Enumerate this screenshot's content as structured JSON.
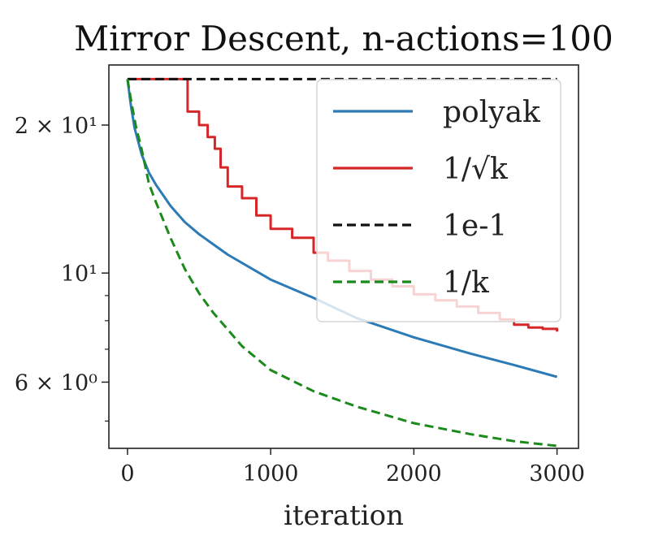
{
  "chart_data": {
    "type": "line",
    "title": "Mirror Descent, n-actions=100",
    "xlabel": "iteration",
    "ylabel": "",
    "xlim": [
      -130,
      3150
    ],
    "ylim": [
      4.4,
      26.5
    ],
    "yscale": "log",
    "grid": false,
    "legend_position": "top-right",
    "x_ticks": [
      0,
      1000,
      2000,
      3000
    ],
    "x_tick_labels": [
      "0",
      "1000",
      "2000",
      "3000"
    ],
    "y_major_ticks": [
      6,
      10,
      20
    ],
    "y_tick_labels": [
      "6 × 10⁰",
      "10¹",
      "2 × 10¹"
    ],
    "y_minor_ticks": [
      5,
      7,
      8,
      9
    ],
    "series": [
      {
        "name": "polyak",
        "color": "#2c7bb6",
        "dash": "solid",
        "x": [
          0,
          25,
          50,
          100,
          150,
          200,
          300,
          400,
          500,
          700,
          1000,
          1300,
          1600,
          2000,
          2400,
          2700,
          3000
        ],
        "y": [
          24.8,
          21.8,
          19.7,
          17.4,
          16.0,
          15.1,
          13.7,
          12.7,
          12.0,
          10.9,
          9.7,
          8.9,
          8.1,
          7.4,
          6.85,
          6.5,
          6.15
        ]
      },
      {
        "name": "1/√k",
        "color": "#d62728",
        "dash": "solid",
        "step": true,
        "x": [
          0,
          370,
          420,
          500,
          560,
          610,
          650,
          700,
          800,
          900,
          1000,
          1150,
          1300,
          1400,
          1550,
          1700,
          1850,
          2000,
          2150,
          2300,
          2450,
          2600,
          2700,
          2800,
          2900,
          3000
        ],
        "y": [
          24.8,
          24.8,
          21.3,
          20.0,
          18.9,
          17.9,
          16.4,
          15.0,
          14.2,
          13.1,
          12.3,
          11.8,
          11.0,
          10.6,
          10.1,
          9.7,
          9.4,
          9.05,
          8.8,
          8.55,
          8.3,
          8.05,
          7.85,
          7.75,
          7.7,
          7.6
        ]
      },
      {
        "name": "1e-1",
        "color": "#111111",
        "dash": "dashed",
        "x": [
          0,
          3000
        ],
        "y": [
          24.8,
          24.8
        ]
      },
      {
        "name": "1/k",
        "color": "#1a8a1a",
        "dash": "dashed",
        "x": [
          0,
          30,
          60,
          100,
          150,
          200,
          300,
          400,
          500,
          600,
          800,
          1000,
          1300,
          1600,
          2000,
          2400,
          2700,
          3000
        ],
        "y": [
          24.8,
          22.0,
          19.8,
          17.8,
          15.2,
          13.9,
          11.8,
          10.2,
          9.1,
          8.3,
          7.1,
          6.35,
          5.75,
          5.35,
          4.95,
          4.7,
          4.55,
          4.45
        ]
      }
    ],
    "legend": [
      {
        "label": "polyak"
      },
      {
        "label": "1/√k"
      },
      {
        "label": "1e-1"
      },
      {
        "label": "1/k"
      }
    ]
  }
}
